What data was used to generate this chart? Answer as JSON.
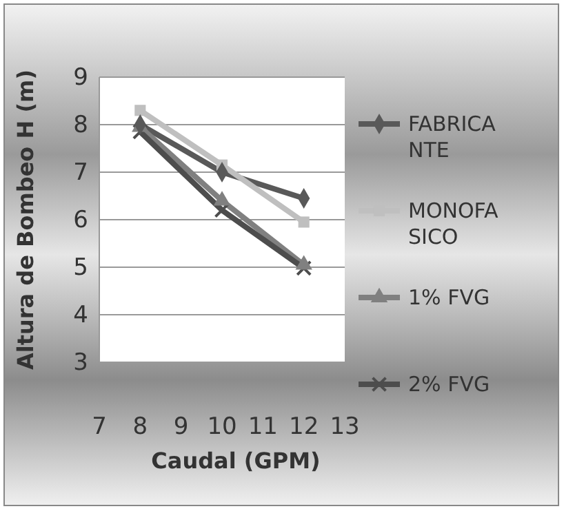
{
  "chart_data": {
    "type": "line",
    "xlabel": "Caudal (GPM)",
    "ylabel": "Altura de Bombeo H (m)",
    "x": [
      8,
      10,
      12
    ],
    "xlim": [
      7,
      13
    ],
    "xticks": [
      7,
      8,
      9,
      10,
      11,
      12,
      13
    ],
    "ylim": [
      3,
      9
    ],
    "yticks": [
      3,
      4,
      5,
      6,
      7,
      8,
      9
    ],
    "grid": "y",
    "legend": "right",
    "line_style": "solid",
    "series": [
      {
        "name": "FABRICANTE",
        "color": "#595959",
        "marker": "diamond",
        "values": [
          8.0,
          7.0,
          6.45
        ]
      },
      {
        "name": "MONOFASICO",
        "color": "#bfbfbf",
        "marker": "square",
        "values": [
          8.3,
          7.15,
          5.95
        ]
      },
      {
        "name": "1% FVG",
        "color": "#808080",
        "marker": "triangle",
        "values": [
          7.95,
          6.4,
          5.05
        ]
      },
      {
        "name": "2% FVG",
        "color": "#4d4d4d",
        "marker": "cross",
        "values": [
          7.85,
          6.2,
          4.98
        ]
      }
    ]
  }
}
